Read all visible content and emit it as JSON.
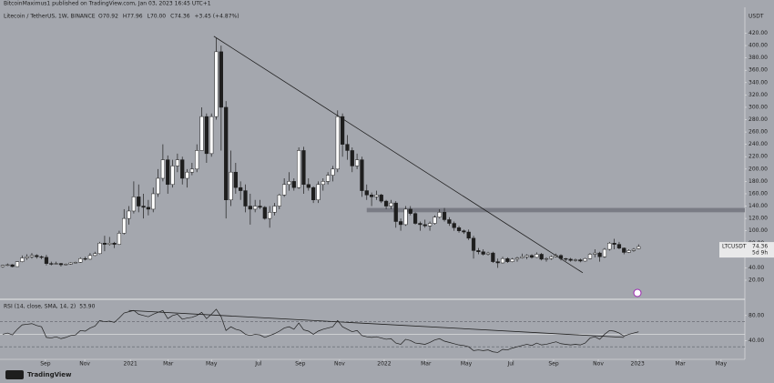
{
  "header": "BitcoinMaximus1 published on TradingView.com, Jan 03, 2023 16:45 UTC+1",
  "footer": "TradingView",
  "chart_data": [
    {
      "type": "candlestick",
      "title": "Litecoin / TetherUS, 1W, BINANCE",
      "legend": [
        "O70.92",
        "H77.96",
        "L70.00",
        "C74.36",
        "+3.45 (+4.87%)"
      ],
      "y_unit": "USDT",
      "price_label": [
        "LTCUSDT",
        "74.36",
        "5d 9h"
      ],
      "up_color": "#ffffff",
      "down_color": "#1e1e1e",
      "ohlc": [
        [
          42,
          45,
          40,
          44
        ],
        [
          44,
          47,
          43,
          45
        ],
        [
          45,
          46,
          41,
          42
        ],
        [
          42,
          51,
          42,
          50
        ],
        [
          50,
          60,
          49,
          56
        ],
        [
          56,
          62,
          53,
          58
        ],
        [
          58,
          64,
          55,
          60
        ],
        [
          60,
          62,
          55,
          58
        ],
        [
          58,
          60,
          54,
          57
        ],
        [
          57,
          61,
          44,
          47
        ],
        [
          47,
          50,
          44,
          46
        ],
        [
          46,
          50,
          45,
          47
        ],
        [
          47,
          48,
          42,
          45
        ],
        [
          45,
          47,
          44,
          46
        ],
        [
          46,
          49,
          45,
          48
        ],
        [
          48,
          50,
          47,
          49
        ],
        [
          49,
          57,
          48,
          55
        ],
        [
          55,
          58,
          52,
          54
        ],
        [
          54,
          64,
          53,
          60
        ],
        [
          60,
          66,
          59,
          63
        ],
        [
          63,
          82,
          62,
          80
        ],
        [
          80,
          92,
          67,
          78
        ],
        [
          78,
          90,
          76,
          80
        ],
        [
          80,
          82,
          72,
          78
        ],
        [
          78,
          100,
          77,
          96
        ],
        [
          96,
          135,
          94,
          120
        ],
        [
          120,
          140,
          110,
          132
        ],
        [
          132,
          180,
          128,
          155
        ],
        [
          155,
          175,
          130,
          140
        ],
        [
          140,
          160,
          120,
          138
        ],
        [
          138,
          150,
          125,
          135
        ],
        [
          135,
          170,
          130,
          160
        ],
        [
          160,
          200,
          155,
          185
        ],
        [
          185,
          240,
          180,
          215
        ],
        [
          215,
          222,
          160,
          175
        ],
        [
          175,
          215,
          170,
          205
        ],
        [
          205,
          225,
          195,
          215
        ],
        [
          215,
          220,
          175,
          185
        ],
        [
          185,
          200,
          170,
          195
        ],
        [
          195,
          210,
          190,
          200
        ],
        [
          200,
          240,
          195,
          230
        ],
        [
          230,
          300,
          230,
          285
        ],
        [
          285,
          290,
          210,
          225
        ],
        [
          225,
          290,
          220,
          285
        ],
        [
          285,
          412,
          280,
          390
        ],
        [
          390,
          400,
          230,
          300
        ],
        [
          300,
          310,
          120,
          150
        ],
        [
          150,
          230,
          140,
          195
        ],
        [
          195,
          210,
          160,
          170
        ],
        [
          170,
          180,
          150,
          165
        ],
        [
          165,
          175,
          130,
          140
        ],
        [
          140,
          160,
          110,
          135
        ],
        [
          135,
          150,
          130,
          140
        ],
        [
          140,
          150,
          135,
          138
        ],
        [
          138,
          140,
          118,
          120
        ],
        [
          120,
          140,
          105,
          130
        ],
        [
          130,
          145,
          125,
          140
        ],
        [
          140,
          160,
          135,
          158
        ],
        [
          158,
          185,
          155,
          175
        ],
        [
          175,
          195,
          165,
          180
        ],
        [
          180,
          185,
          165,
          170
        ],
        [
          170,
          235,
          168,
          230
        ],
        [
          230,
          236,
          160,
          175
        ],
        [
          175,
          185,
          165,
          170
        ],
        [
          170,
          172,
          145,
          150
        ],
        [
          150,
          180,
          145,
          175
        ],
        [
          175,
          185,
          165,
          180
        ],
        [
          180,
          195,
          175,
          190
        ],
        [
          190,
          205,
          180,
          200
        ],
        [
          200,
          295,
          195,
          285
        ],
        [
          285,
          290,
          220,
          240
        ],
        [
          240,
          255,
          215,
          230
        ],
        [
          230,
          235,
          195,
          205
        ],
        [
          205,
          225,
          200,
          215
        ],
        [
          215,
          220,
          155,
          165
        ],
        [
          165,
          175,
          150,
          158
        ],
        [
          158,
          162,
          140,
          155
        ],
        [
          155,
          165,
          150,
          158
        ],
        [
          158,
          160,
          145,
          148
        ],
        [
          148,
          150,
          135,
          140
        ],
        [
          140,
          150,
          135,
          145
        ],
        [
          145,
          148,
          105,
          115
        ],
        [
          115,
          120,
          100,
          110
        ],
        [
          110,
          140,
          108,
          135
        ],
        [
          135,
          140,
          125,
          128
        ],
        [
          128,
          130,
          110,
          112
        ],
        [
          112,
          115,
          100,
          110
        ],
        [
          110,
          118,
          105,
          108
        ],
        [
          108,
          115,
          100,
          112
        ],
        [
          112,
          125,
          110,
          122
        ],
        [
          122,
          135,
          120,
          130
        ],
        [
          130,
          137,
          115,
          118
        ],
        [
          118,
          122,
          108,
          112
        ],
        [
          112,
          115,
          100,
          105
        ],
        [
          105,
          108,
          97,
          100
        ],
        [
          100,
          102,
          95,
          98
        ],
        [
          98,
          102,
          85,
          88
        ],
        [
          88,
          92,
          55,
          68
        ],
        [
          68,
          72,
          62,
          66
        ],
        [
          66,
          70,
          60,
          62
        ],
        [
          62,
          66,
          60,
          64
        ],
        [
          64,
          66,
          48,
          50
        ],
        [
          50,
          55,
          40,
          48
        ],
        [
          48,
          58,
          47,
          55
        ],
        [
          55,
          57,
          48,
          50
        ],
        [
          50,
          56,
          49,
          54
        ],
        [
          54,
          58,
          50,
          56
        ],
        [
          56,
          63,
          55,
          58
        ],
        [
          58,
          62,
          54,
          60
        ],
        [
          60,
          62,
          55,
          57
        ],
        [
          57,
          65,
          56,
          62
        ],
        [
          62,
          64,
          52,
          54
        ],
        [
          54,
          57,
          50,
          55
        ],
        [
          55,
          60,
          53,
          58
        ],
        [
          58,
          63,
          57,
          60
        ],
        [
          60,
          62,
          52,
          55
        ],
        [
          55,
          56,
          51,
          54
        ],
        [
          54,
          56,
          50,
          52
        ],
        [
          52,
          55,
          50,
          53
        ],
        [
          53,
          55,
          49,
          51
        ],
        [
          51,
          56,
          50,
          55
        ],
        [
          55,
          64,
          54,
          62
        ],
        [
          62,
          70,
          57,
          64
        ],
        [
          64,
          66,
          50,
          58
        ],
        [
          58,
          72,
          56,
          70
        ],
        [
          70,
          82,
          68,
          80
        ],
        [
          80,
          87,
          70,
          78
        ],
        [
          78,
          82,
          70,
          72
        ],
        [
          72,
          73,
          62,
          65
        ],
        [
          65,
          70,
          64,
          68
        ],
        [
          68,
          72,
          66,
          70
        ],
        [
          70.92,
          77.96,
          70,
          74.36
        ]
      ],
      "xlim": [
        -0.56,
        152.9
      ],
      "ylim": [
        -9.5,
        462
      ],
      "yticks": [
        {
          "value": 20,
          "label": "20.00"
        },
        {
          "value": 40,
          "label": "40.00"
        },
        {
          "value": 60,
          "label": "60.00"
        },
        {
          "value": 80,
          "label": "80.00"
        },
        {
          "value": 100,
          "label": "100.00"
        },
        {
          "value": 120,
          "label": "120.00"
        },
        {
          "value": 140,
          "label": "140.00"
        },
        {
          "value": 160,
          "label": "160.00"
        },
        {
          "value": 180,
          "label": "180.00"
        },
        {
          "value": 200,
          "label": "200.00"
        },
        {
          "value": 220,
          "label": "220.00"
        },
        {
          "value": 240,
          "label": "240.00"
        },
        {
          "value": 260,
          "label": "260.00"
        },
        {
          "value": 280,
          "label": "280.00"
        },
        {
          "value": 300,
          "label": "300.00"
        },
        {
          "value": 320,
          "label": "320.00"
        },
        {
          "value": 340,
          "label": "340.00"
        },
        {
          "value": 360,
          "label": "360.00"
        },
        {
          "value": 380,
          "label": "380.00"
        },
        {
          "value": 400,
          "label": "400.00"
        },
        {
          "value": 420,
          "label": "420.00"
        }
      ],
      "xticks": [
        {
          "value": 8.8,
          "label": "Sep"
        },
        {
          "value": 16.9,
          "label": "Nov"
        },
        {
          "value": 26.3,
          "label": "2021"
        },
        {
          "value": 34.1,
          "label": "Mar"
        },
        {
          "value": 43,
          "label": "May"
        },
        {
          "value": 52.7,
          "label": "Jul"
        },
        {
          "value": 61.3,
          "label": "Sep"
        },
        {
          "value": 69.4,
          "label": "Nov"
        },
        {
          "value": 78.6,
          "label": "2022"
        },
        {
          "value": 87.2,
          "label": "Mar"
        },
        {
          "value": 95.5,
          "label": "May"
        },
        {
          "value": 104.7,
          "label": "Jul"
        },
        {
          "value": 113.5,
          "label": "Sep"
        },
        {
          "value": 122.7,
          "label": "Nov"
        },
        {
          "value": 130.8,
          "label": "2023"
        },
        {
          "value": 139.6,
          "label": "Mar"
        },
        {
          "value": 148,
          "label": "May"
        }
      ],
      "trendline": [
        [
          43.5,
          415
        ],
        [
          119.5,
          32
        ]
      ],
      "zone": {
        "from": 75,
        "low": 130,
        "high": 137
      }
    },
    {
      "type": "line",
      "title": "RSI (14, close, SMA, 14, 2)",
      "last_label": "53.90",
      "color": "#1e1e1e",
      "values": [
        50,
        52,
        49,
        58,
        65,
        66,
        67,
        64,
        62,
        45,
        44,
        46,
        43,
        45,
        48,
        49,
        56,
        55,
        60,
        63,
        72,
        70,
        71,
        69,
        76,
        84,
        86,
        88,
        82,
        80,
        78,
        82,
        85,
        88,
        75,
        80,
        82,
        74,
        76,
        77,
        80,
        85,
        75,
        82,
        90,
        78,
        56,
        62,
        58,
        56,
        50,
        48,
        50,
        49,
        45,
        48,
        51,
        55,
        60,
        62,
        58,
        68,
        57,
        55,
        50,
        55,
        58,
        60,
        62,
        72,
        62,
        58,
        54,
        56,
        48,
        46,
        45,
        46,
        44,
        42,
        43,
        36,
        34,
        42,
        40,
        36,
        35,
        34,
        37,
        41,
        43,
        39,
        37,
        35,
        33,
        32,
        30,
        24,
        25,
        24,
        25,
        22,
        21,
        26,
        25,
        28,
        30,
        32,
        34,
        32,
        36,
        33,
        34,
        36,
        38,
        35,
        34,
        33,
        34,
        33,
        36,
        44,
        46,
        42,
        50,
        56,
        55,
        52,
        47,
        50,
        52,
        53.9
      ],
      "ylim": [
        10,
        100
      ],
      "yticks": [
        {
          "value": 80,
          "label": "80.00"
        },
        {
          "value": 40,
          "label": "40.00"
        }
      ],
      "bands": [
        70,
        30
      ],
      "midline": 50,
      "trendline": [
        [
          26,
          88
        ],
        [
          128,
          45
        ]
      ]
    }
  ]
}
